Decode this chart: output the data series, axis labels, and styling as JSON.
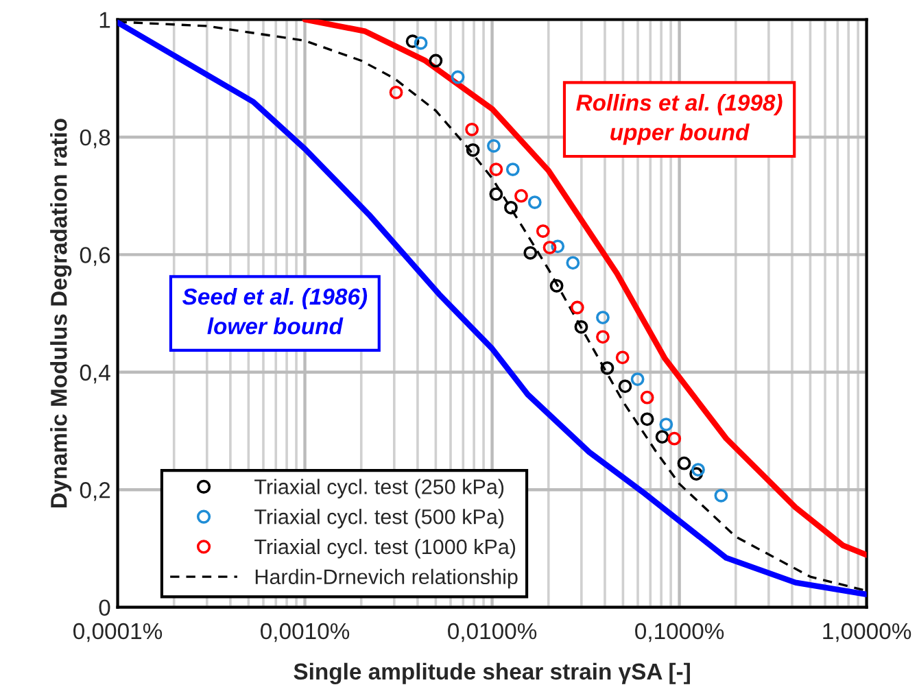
{
  "chart_data": {
    "type": "line",
    "xlabel": "Single amplitude shear strain γSA [-]",
    "ylabel": "Dynamic Modulus Degradation ratio",
    "log": "x",
    "xlim": [
      0.0001,
      1
    ],
    "xticks": [
      {
        "value": 0.0001,
        "label": "0,0001%"
      },
      {
        "value": 0.001,
        "label": "0,0010%"
      },
      {
        "value": 0.01,
        "label": "0,0100%"
      },
      {
        "value": 0.1,
        "label": "0,1000%"
      },
      {
        "value": 1,
        "label": "1,0000%"
      }
    ],
    "ylim": [
      0,
      1
    ],
    "yticks": [
      0,
      {
        "value": 0.2,
        "label": "0,2"
      },
      {
        "value": 0.4,
        "label": "0,4"
      },
      {
        "value": 0.6,
        "label": "0,6"
      },
      {
        "value": 0.8,
        "label": "0,8"
      },
      1
    ],
    "grid": true,
    "legend": "bottom left",
    "series": [
      {
        "name": "Triaxial cycl. test (250 kPa)",
        "type": "scatter",
        "marker": "circle",
        "color": "#000000",
        "x": [
          0.00376,
          0.005,
          0.0079,
          0.0105,
          0.0126,
          0.016,
          0.0221,
          0.0299,
          0.0412,
          0.0513,
          0.0673,
          0.081,
          0.106,
          0.123
        ],
        "values": [
          0.963,
          0.93,
          0.778,
          0.703,
          0.68,
          0.603,
          0.547,
          0.477,
          0.407,
          0.376,
          0.32,
          0.29,
          0.245,
          0.227
        ]
      },
      {
        "name": "Triaxial cycl. test (500 kPa)",
        "type": "scatter",
        "marker": "circle",
        "color": "#1f8dd6",
        "x": [
          0.00416,
          0.00656,
          0.0102,
          0.0129,
          0.0169,
          0.0224,
          0.027,
          0.039,
          0.0598,
          0.085,
          0.126,
          0.167
        ],
        "values": [
          0.96,
          0.902,
          0.785,
          0.745,
          0.689,
          0.614,
          0.586,
          0.493,
          0.388,
          0.311,
          0.234,
          0.19
        ]
      },
      {
        "name": "Triaxial cycl. test (1000 kPa)",
        "type": "scatter",
        "marker": "circle",
        "color": "#ff0000",
        "x": [
          0.00307,
          0.0078,
          0.0105,
          0.0143,
          0.0187,
          0.0203,
          0.0285,
          0.039,
          0.0497,
          0.0673,
          0.094
        ],
        "values": [
          0.876,
          0.813,
          0.745,
          0.7,
          0.64,
          0.612,
          0.51,
          0.46,
          0.425,
          0.357,
          0.287
        ]
      },
      {
        "name": "Hardin-Drnevich relationship",
        "line_style": "dashed",
        "color": "#000000",
        "x": [
          0.0001,
          0.0003,
          0.001,
          0.002,
          0.003,
          0.005,
          0.0075,
          0.01,
          0.015,
          0.02,
          0.03,
          0.05,
          0.075,
          0.1,
          0.2,
          0.5,
          1
        ],
        "values": [
          0.996,
          0.989,
          0.964,
          0.93,
          0.9,
          0.845,
          0.78,
          0.73,
          0.64,
          0.575,
          0.475,
          0.35,
          0.265,
          0.21,
          0.12,
          0.052,
          0.028
        ]
      },
      {
        "name": "Seed et al. (1986)\nlower bound",
        "line_style": "solid",
        "color": "#0000ff",
        "x": [
          0.0001,
          0.00053,
          0.001,
          0.0022,
          0.0052,
          0.01,
          0.0155,
          0.033,
          0.065,
          0.178,
          0.417,
          1
        ],
        "values": [
          0.995,
          0.86,
          0.78,
          0.668,
          0.533,
          0.44,
          0.362,
          0.264,
          0.194,
          0.084,
          0.042,
          0.022
        ]
      },
      {
        "name": "Rollins et al. (1998)\nupper bound",
        "line_style": "solid",
        "color": "#ff0000",
        "x": [
          0.001,
          0.0021,
          0.0044,
          0.01,
          0.02,
          0.0464,
          0.0838,
          0.178,
          0.417,
          0.75,
          1
        ],
        "values": [
          1.0,
          0.98,
          0.93,
          0.848,
          0.743,
          0.568,
          0.423,
          0.287,
          0.17,
          0.105,
          0.089
        ]
      }
    ]
  }
}
